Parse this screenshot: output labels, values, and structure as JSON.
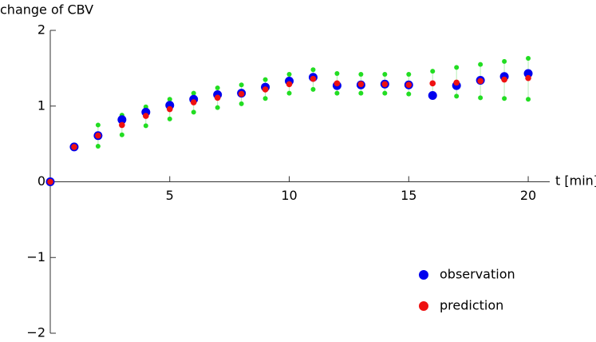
{
  "chart_data": {
    "type": "scatter",
    "y_label": "change of CBV",
    "x_label": "t [min]",
    "x": [
      0,
      1,
      2,
      3,
      4,
      5,
      6,
      7,
      8,
      9,
      10,
      11,
      12,
      13,
      14,
      15,
      16,
      17,
      18,
      19,
      20
    ],
    "series": [
      {
        "color": "#22dd22",
        "values": [
          null,
          null,
          0.75,
          0.88,
          0.99,
          1.09,
          1.17,
          1.24,
          1.28,
          1.35,
          1.42,
          1.48,
          1.43,
          1.42,
          1.42,
          1.42,
          1.46,
          1.51,
          1.55,
          1.59,
          1.63
        ]
      },
      {
        "color": "#22dd22",
        "values": [
          null,
          null,
          0.47,
          0.62,
          0.74,
          0.83,
          0.92,
          0.98,
          1.03,
          1.1,
          1.17,
          1.22,
          1.17,
          1.17,
          1.17,
          1.16,
          1.14,
          1.13,
          1.11,
          1.1,
          1.09
        ]
      },
      {
        "name": "observation",
        "color": "#0000ee",
        "values": [
          0,
          0.46,
          0.61,
          0.82,
          0.92,
          1.01,
          1.09,
          1.15,
          1.17,
          1.25,
          1.33,
          1.38,
          1.27,
          1.28,
          1.29,
          1.28,
          1.14,
          1.27,
          1.34,
          1.39,
          1.43
        ]
      },
      {
        "name": "prediction",
        "color": "#ee1111",
        "values": [
          0,
          0.46,
          0.61,
          0.75,
          0.87,
          0.96,
          1.05,
          1.11,
          1.16,
          1.22,
          1.29,
          1.36,
          1.3,
          1.29,
          1.29,
          1.28,
          1.3,
          1.31,
          1.33,
          1.35,
          1.37
        ]
      }
    ],
    "xlim": [
      0,
      20.9
    ],
    "ylim": [
      -2,
      2
    ],
    "xticks": [
      5,
      10,
      15,
      20
    ],
    "yticks": [
      {
        "value": -2,
        "label": "−2"
      },
      {
        "value": -1,
        "label": "−1"
      },
      0,
      1,
      2
    ],
    "legend": "lower right"
  }
}
